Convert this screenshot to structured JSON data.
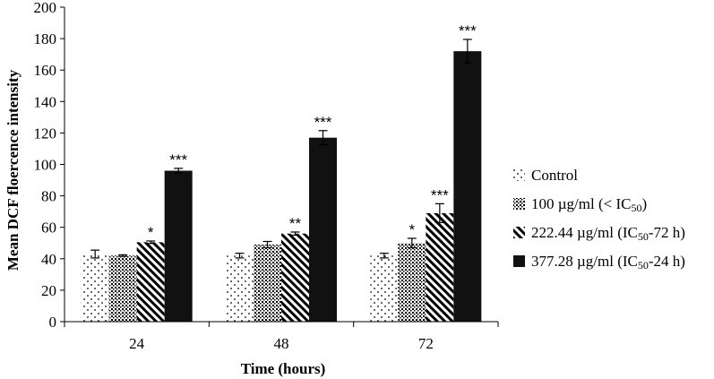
{
  "chart_data": {
    "type": "bar",
    "ylabel": "Mean DCF floercence intensity",
    "xlabel": "Time (hours)",
    "ylim": [
      0,
      200
    ],
    "ytick_step": 20,
    "categories": [
      "24",
      "48",
      "72"
    ],
    "legend_position": "right",
    "series": [
      {
        "name": "Control",
        "pattern": "sparse-dots",
        "values": [
          43,
          42,
          42
        ],
        "errors": [
          2.5,
          1.5,
          1.5
        ],
        "significance": [
          "",
          "",
          ""
        ]
      },
      {
        "name": "100 µg/ml (< IC",
        "name_sub": "50",
        "name_tail": ")",
        "pattern": "dense-dots",
        "values": [
          42,
          49,
          50
        ],
        "errors": [
          0.5,
          2,
          3
        ],
        "significance": [
          "",
          "",
          "*"
        ]
      },
      {
        "name": "222.44 µg/ml (IC",
        "name_sub": "50",
        "name_tail": "-72 h)",
        "pattern": "diagonal-hatch",
        "values": [
          50.5,
          56,
          69
        ],
        "errors": [
          0.8,
          1,
          6
        ],
        "significance": [
          "*",
          "**",
          "***"
        ]
      },
      {
        "name": "377.28 µg/ml (IC",
        "name_sub": "50",
        "name_tail": "-24 h)",
        "pattern": "solid-black",
        "values": [
          96,
          117,
          172
        ],
        "errors": [
          1.5,
          4.5,
          7.5
        ],
        "significance": [
          "***",
          "***",
          "***"
        ]
      }
    ]
  }
}
